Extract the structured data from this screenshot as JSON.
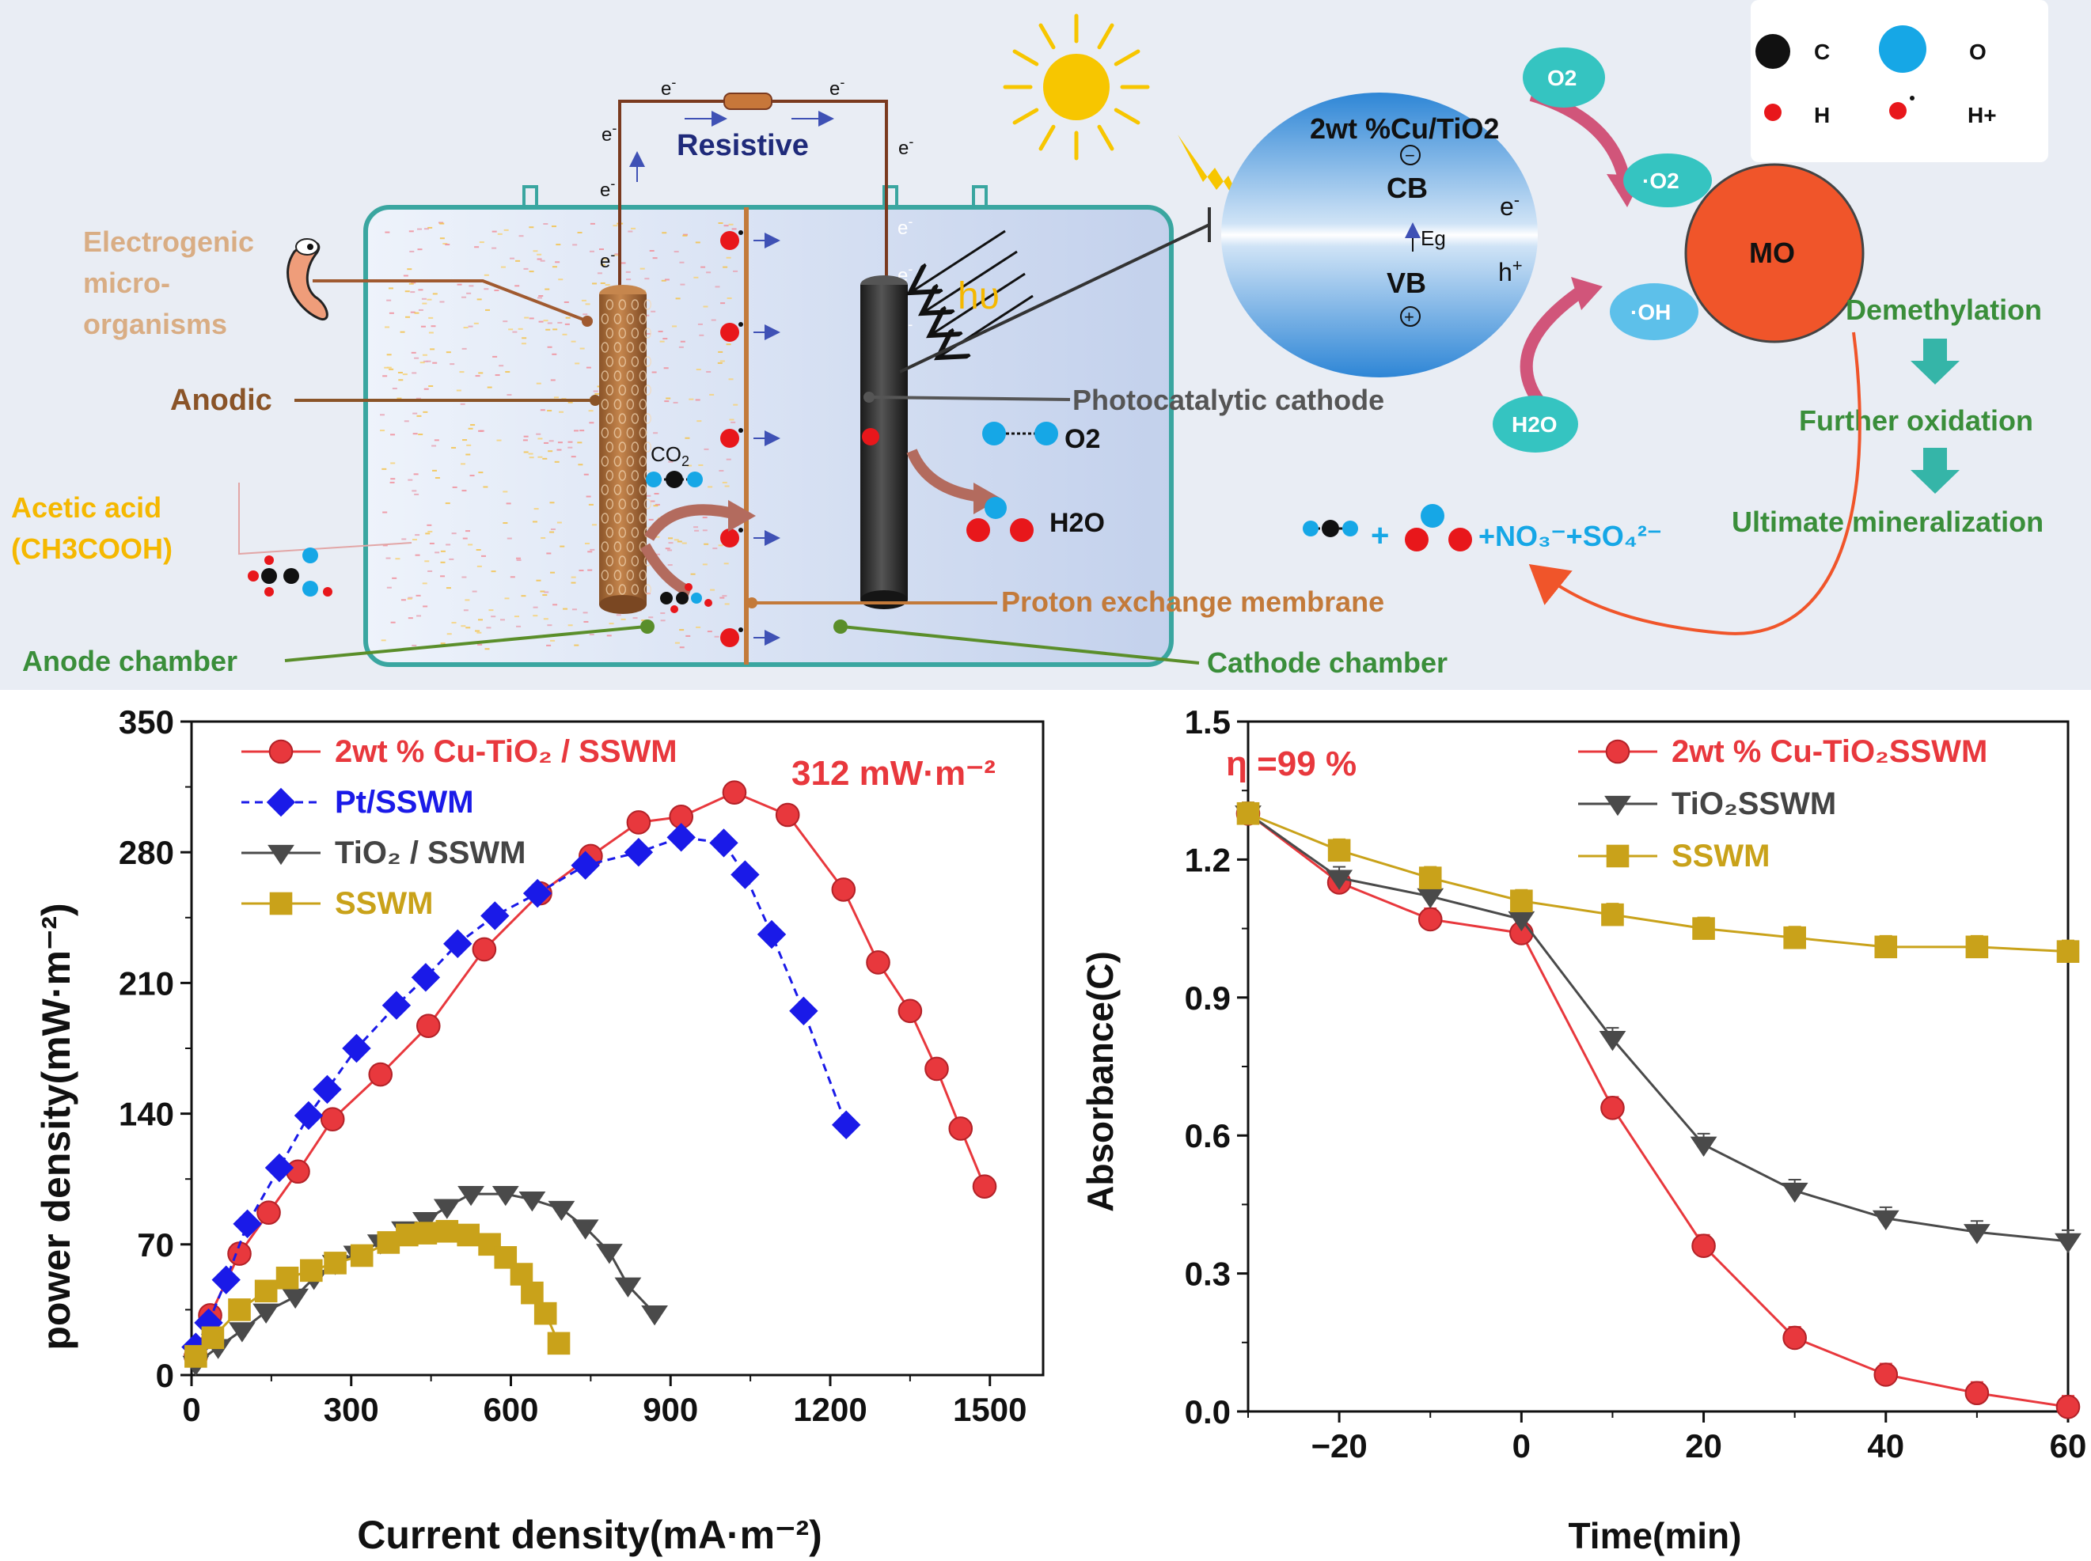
{
  "schematic": {
    "electron": "e",
    "electron_sup": "-",
    "resistive": "Resistive",
    "electrogenic": [
      "Electrogenic",
      "micro-",
      "organisms"
    ],
    "anodic": "Anodic",
    "acetic": [
      "Acetic acid",
      "(CH3COOH)"
    ],
    "anode_chamber": "Anode chamber",
    "cathode_chamber": "Cathode chamber",
    "membrane": "Proton exchange membrane",
    "photocatalytic_cathode": "Photocatalytic cathode",
    "co2": "CO2",
    "o2": "O2",
    "h2o": "H2O",
    "hv": "hυ",
    "catalyst": "2wt %Cu/TiO2",
    "cb": "CB",
    "vb": "VB",
    "eg": "Eg",
    "hole": "h",
    "hole_sup": "+",
    "minus": "−",
    "plus": "+",
    "bubble_o2": "O2",
    "bubble_o2rad": "·O2",
    "bubble_oh": "·OH",
    "bubble_h2o": "H2O",
    "mo": "MO",
    "steps": [
      "Demethylation",
      "Further oxidation",
      "Ultimate mineralization"
    ],
    "products": "+NO₃⁻+SO₄²⁻",
    "legend": {
      "c": "C",
      "o": "O",
      "h": "H",
      "hplus": "H+"
    },
    "colors": {
      "chamber_border": "#3aa6a0",
      "anode": "#b5733f",
      "cathode": "#2e2e2e",
      "red_atom": "#e8171b",
      "blue_atom": "#16a7e6",
      "black_atom": "#111111",
      "mo": "#f0552a",
      "teal_bubble": "#35c4c1",
      "green_text": "#3a8e3a",
      "orange_text": "#f5b800",
      "tan_text": "#d9ad84"
    }
  },
  "chart_data": [
    {
      "type": "line",
      "xlabel": "Current density(mA·m⁻²)",
      "ylabel": "power density(mW·m⁻²)",
      "xlim": [
        0,
        1600
      ],
      "ylim": [
        0,
        350
      ],
      "xticks": [
        0,
        300,
        600,
        900,
        1200,
        1500
      ],
      "yticks": [
        0,
        70,
        140,
        210,
        280,
        350
      ],
      "annotation": "312 mW·m⁻²",
      "series": [
        {
          "name": "2wt % Cu-TiO₂ / SSWM",
          "color": "#e8383d",
          "marker": "circle",
          "x": [
            8,
            35,
            90,
            145,
            200,
            265,
            355,
            445,
            550,
            655,
            750,
            840,
            920,
            1020,
            1120,
            1225,
            1290,
            1350,
            1400,
            1445,
            1490
          ],
          "y": [
            10,
            32,
            65,
            87,
            109,
            137,
            161,
            187,
            228,
            258,
            278,
            296,
            299,
            312,
            300,
            260,
            221,
            195,
            164,
            132,
            101
          ]
        },
        {
          "name": "Pt/SSWM",
          "color": "#1a1ae8",
          "marker": "diamond",
          "dash": true,
          "x": [
            8,
            32,
            65,
            105,
            165,
            220,
            255,
            310,
            385,
            440,
            500,
            570,
            650,
            740,
            840,
            920,
            1000,
            1040,
            1090,
            1150,
            1230
          ],
          "y": [
            15,
            28,
            51,
            81,
            111,
            139,
            153,
            175,
            198,
            213,
            231,
            246,
            258,
            273,
            280,
            288,
            285,
            268,
            236,
            195,
            134
          ]
        },
        {
          "name": "TiO₂ / SSWM",
          "color": "#4a4a4a",
          "marker": "triangle-down",
          "x": [
            8,
            50,
            95,
            140,
            195,
            230,
            270,
            310,
            355,
            400,
            440,
            480,
            525,
            590,
            640,
            695,
            740,
            785,
            820,
            870
          ],
          "y": [
            6,
            15,
            24,
            34,
            42,
            52,
            60,
            65,
            71,
            78,
            83,
            90,
            97,
            97,
            94,
            89,
            79,
            66,
            48,
            33
          ]
        },
        {
          "name": "SSWM",
          "color": "#c9a21a",
          "marker": "square",
          "x": [
            8,
            40,
            90,
            140,
            180,
            225,
            270,
            320,
            370,
            405,
            440,
            480,
            520,
            560,
            590,
            620,
            640,
            665,
            690
          ],
          "y": [
            10,
            20,
            35,
            45,
            52,
            56,
            60,
            64,
            71,
            75,
            76,
            77,
            75,
            70,
            63,
            54,
            44,
            33,
            17
          ]
        }
      ]
    },
    {
      "type": "line",
      "xlabel": "Time(min)",
      "ylabel": "Absorbance(C)",
      "xlim": [
        -30,
        60
      ],
      "ylim": [
        0,
        1.5
      ],
      "xticks": [
        -20,
        0,
        20,
        40,
        60
      ],
      "xtick_labels": [
        "−20",
        "0",
        "20",
        "40",
        "60"
      ],
      "yticks": [
        0.0,
        0.3,
        0.6,
        0.9,
        1.2,
        1.5
      ],
      "ytick_labels": [
        "0.0",
        "0.3",
        "0.6",
        "0.9",
        "1.2",
        "1.5"
      ],
      "annotation": "η =99 %",
      "series": [
        {
          "name": "2wt % Cu-TiO₂SSWM",
          "color": "#e8383d",
          "marker": "circle",
          "x": [
            -30,
            -20,
            -10,
            0,
            10,
            20,
            30,
            40,
            50,
            60
          ],
          "y": [
            1.3,
            1.15,
            1.07,
            1.04,
            0.66,
            0.36,
            0.16,
            0.08,
            0.04,
            0.01
          ]
        },
        {
          "name": "TiO₂SSWM",
          "color": "#4a4a4a",
          "marker": "triangle-down",
          "x": [
            -30,
            -20,
            -10,
            0,
            10,
            20,
            30,
            40,
            50,
            60
          ],
          "y": [
            1.3,
            1.16,
            1.12,
            1.07,
            0.81,
            0.58,
            0.48,
            0.42,
            0.39,
            0.37
          ]
        },
        {
          "name": "SSWM",
          "color": "#c9a21a",
          "marker": "square",
          "x": [
            -30,
            -20,
            -10,
            0,
            10,
            20,
            30,
            40,
            50,
            60
          ],
          "y": [
            1.3,
            1.22,
            1.16,
            1.11,
            1.08,
            1.05,
            1.03,
            1.01,
            1.01,
            1.0
          ]
        }
      ]
    }
  ]
}
